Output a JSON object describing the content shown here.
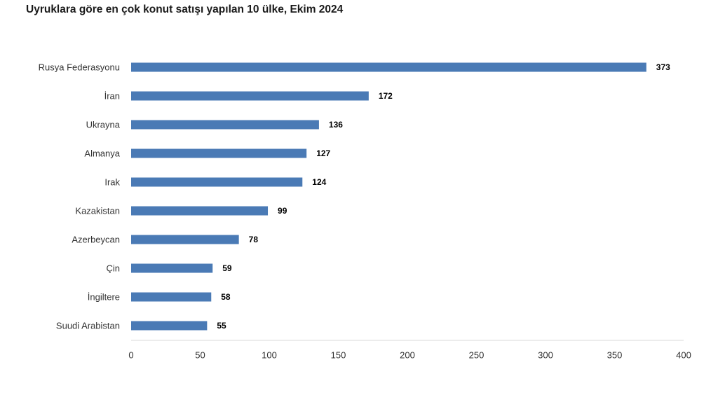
{
  "chart_data": {
    "type": "bar",
    "orientation": "horizontal",
    "title": "Uyruklara göre en çok konut satışı yapılan 10 ülke, Ekim 2024",
    "categories": [
      "Rusya Federasyonu",
      "İran",
      "Ukrayna",
      "Almanya",
      "Irak",
      "Kazakistan",
      "Azerbeycan",
      "Çin",
      "İngiltere",
      "Suudi Arabistan"
    ],
    "values": [
      373,
      172,
      136,
      127,
      124,
      99,
      78,
      59,
      58,
      55
    ],
    "value_labels": [
      "373",
      "172",
      "136",
      "127",
      "124",
      "99",
      "78",
      "59",
      "58",
      "55"
    ],
    "xlim": [
      0,
      400
    ],
    "x_ticks": [
      "0",
      "50",
      "100",
      "150",
      "200",
      "250",
      "300",
      "350",
      "400"
    ],
    "xlabel": "",
    "ylabel": "",
    "grid": false,
    "bar_color": "#4a7ab5"
  }
}
